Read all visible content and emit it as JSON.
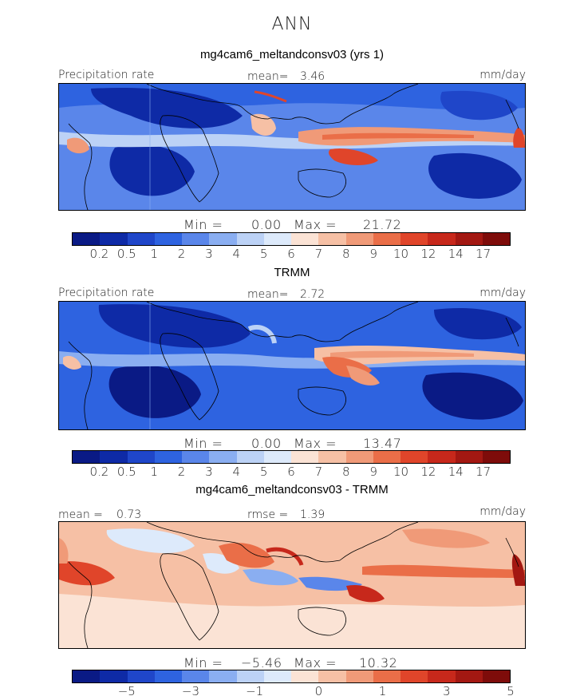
{
  "main_title": "ANN",
  "colors": {
    "precip_scale": [
      "#0a1a85",
      "#0e2aa6",
      "#1f46c9",
      "#2e63e0",
      "#5a86ea",
      "#8aaef1",
      "#bcd2f6",
      "#ddeafb",
      "#fbe3d5",
      "#f6c0a5",
      "#f09a78",
      "#ea6e48",
      "#e0452a",
      "#c7281b",
      "#a31812",
      "#7e0c0a"
    ],
    "diff_scale": [
      "#0a1a85",
      "#0e2aa6",
      "#1f46c9",
      "#2e63e0",
      "#5a86ea",
      "#8aaef1",
      "#bcd2f6",
      "#ddeafb",
      "#fbe3d5",
      "#f6c0a5",
      "#f09a78",
      "#ea6e48",
      "#e0452a",
      "#c7281b",
      "#a31812",
      "#7e0c0a"
    ]
  },
  "panels": [
    {
      "title": "mg4cam6_meltandconsv03 (yrs 1)",
      "left_label": "Precipitation rate",
      "stat_label": "mean=",
      "stat_value": "3.46",
      "units": "mm/day",
      "min_label": "Min =",
      "min_value": "0.00",
      "max_label": "Max =",
      "max_value": "21.72",
      "ticks": [
        "0.2",
        "0.5",
        "1",
        "2",
        "3",
        "4",
        "5",
        "6",
        "7",
        "8",
        "9",
        "10",
        "12",
        "14",
        "17"
      ]
    },
    {
      "title": "TRMM",
      "left_label": "Precipitation rate",
      "stat_label": "mean=",
      "stat_value": "2.72",
      "units": "mm/day",
      "min_label": "Min =",
      "min_value": "0.00",
      "max_label": "Max =",
      "max_value": "13.47",
      "ticks": [
        "0.2",
        "0.5",
        "1",
        "2",
        "3",
        "4",
        "5",
        "6",
        "7",
        "8",
        "9",
        "10",
        "12",
        "14",
        "17"
      ]
    },
    {
      "title": "mg4cam6_meltandconsv03 - TRMM",
      "left_label": "mean =",
      "left_value": "0.73",
      "stat_label": "rmse =",
      "stat_value": "1.39",
      "units": "mm/day",
      "min_label": "Min =",
      "min_value": "−5.46",
      "max_label": "Max =",
      "max_value": "10.32",
      "ticks": [
        "−5",
        "−3",
        "−1",
        "0",
        "1",
        "3",
        "5"
      ]
    }
  ],
  "chart_data": [
    {
      "type": "heatmap",
      "title": "mg4cam6_meltandconsv03 (yrs 1)",
      "variable": "Precipitation rate",
      "units": "mm/day",
      "mean": 3.46,
      "min": 0.0,
      "max": 21.72,
      "levels": [
        0.2,
        0.5,
        1,
        2,
        3,
        4,
        5,
        6,
        7,
        8,
        9,
        10,
        12,
        14,
        17
      ]
    },
    {
      "type": "heatmap",
      "title": "TRMM",
      "variable": "Precipitation rate",
      "units": "mm/day",
      "mean": 2.72,
      "min": 0.0,
      "max": 13.47,
      "levels": [
        0.2,
        0.5,
        1,
        2,
        3,
        4,
        5,
        6,
        7,
        8,
        9,
        10,
        12,
        14,
        17
      ]
    },
    {
      "type": "heatmap",
      "title": "mg4cam6_meltandconsv03 - TRMM",
      "units": "mm/day",
      "mean": 0.73,
      "rmse": 1.39,
      "min": -5.46,
      "max": 10.32,
      "levels": [
        -5,
        -3,
        -1,
        0,
        1,
        3,
        5
      ]
    }
  ]
}
